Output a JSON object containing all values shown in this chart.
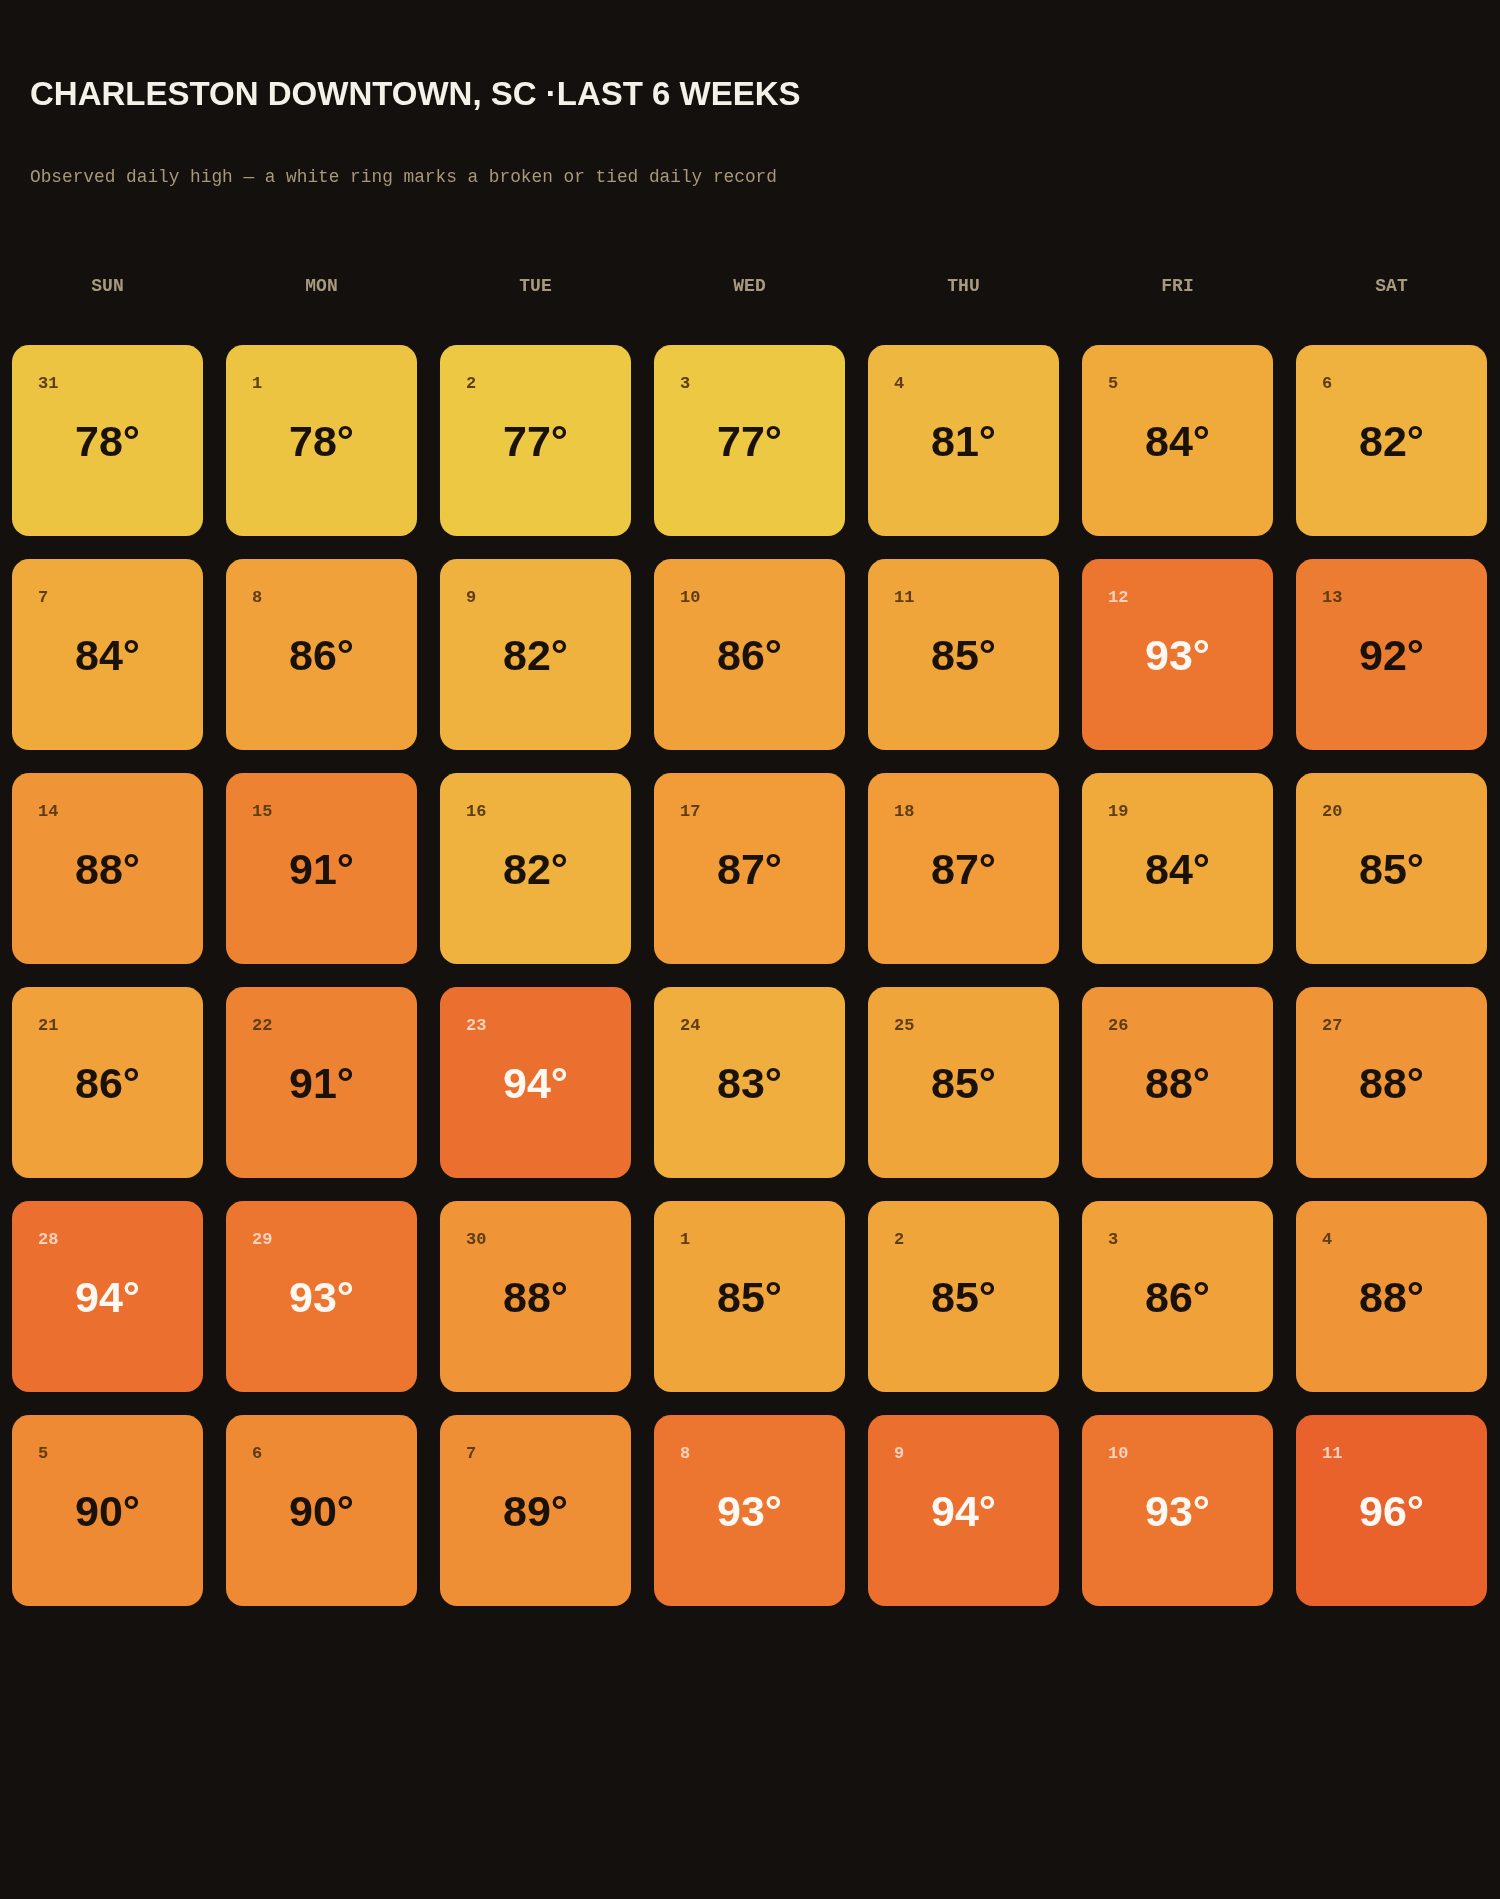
{
  "chart_data": {
    "type": "heatmap",
    "title": "CHARLESTON DOWNTOWN, SC ·LAST 6 WEEKS",
    "subtitle": "Observed daily high — a white ring marks a broken or tied daily record",
    "categories": [
      "SUN",
      "MON",
      "TUE",
      "WED",
      "THU",
      "FRI",
      "SAT"
    ],
    "y_categories": [
      null,
      null,
      null,
      null,
      null,
      null
    ],
    "cells": [
      [
        78,
        78,
        77,
        77,
        81,
        84,
        82
      ],
      [
        84,
        86,
        82,
        86,
        85,
        93,
        92
      ],
      [
        88,
        91,
        82,
        87,
        87,
        84,
        85
      ],
      [
        86,
        91,
        94,
        83,
        85,
        88,
        88
      ],
      [
        94,
        93,
        88,
        85,
        85,
        86,
        88
      ],
      [
        90,
        90,
        89,
        93,
        94,
        93,
        96
      ]
    ],
    "cell_labels": [
      [
        "78°",
        "78°",
        "77°",
        "77°",
        "81°",
        "84°",
        "82°"
      ],
      [
        "84°",
        "86°",
        "82°",
        "86°",
        "85°",
        "93°",
        "92°"
      ],
      [
        "88°",
        "91°",
        "82°",
        "87°",
        "87°",
        "84°",
        "85°"
      ],
      [
        "86°",
        "91°",
        "94°",
        "83°",
        "85°",
        "88°",
        "88°"
      ],
      [
        "94°",
        "93°",
        "88°",
        "85°",
        "85°",
        "86°",
        "88°"
      ],
      [
        "90°",
        "90°",
        "89°",
        "93°",
        "94°",
        "93°",
        "96°"
      ]
    ],
    "annotations": [
      "31",
      "1",
      "2",
      "3",
      "4",
      "5",
      "6",
      "7",
      "8",
      "9",
      "10",
      "11",
      "12",
      "13",
      "14",
      "15",
      "16",
      "17",
      "18",
      "19",
      "20",
      "21",
      "22",
      "23",
      "24",
      "25",
      "26",
      "27",
      "28",
      "29",
      "30",
      "1",
      "2",
      "3",
      "4",
      "5",
      "6",
      "7",
      "8",
      "9",
      "10",
      "11"
    ],
    "colors": [
      "#ecc843",
      "#f19f39",
      "#e9622b"
    ]
  }
}
